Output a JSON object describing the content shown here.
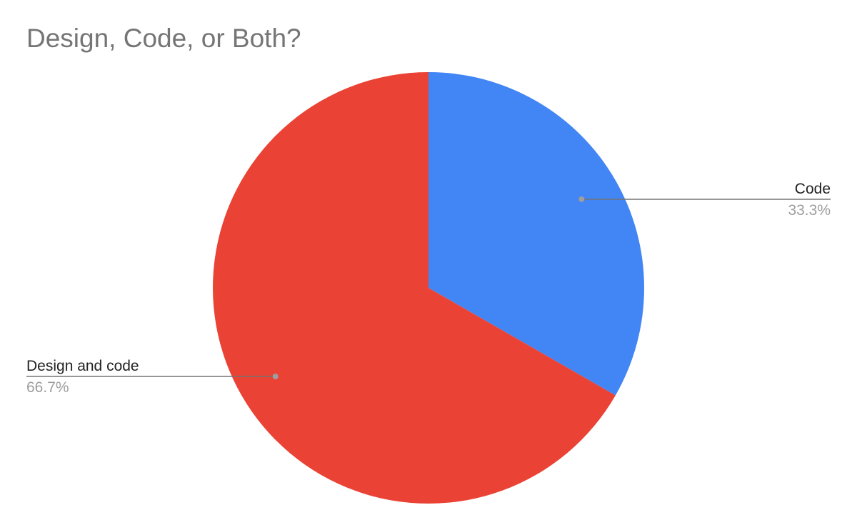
{
  "chart_data": {
    "type": "pie",
    "title": "Design, Code, or Both?",
    "slices": [
      {
        "label": "Code",
        "value": 33.3,
        "percent_label": "33.3%",
        "color": "#4285F4",
        "label_side": "right"
      },
      {
        "label": "Design and code",
        "value": 66.7,
        "percent_label": "66.7%",
        "color": "#EA4335",
        "label_side": "left"
      }
    ],
    "start_angle": "12 o'clock",
    "direction": "clockwise",
    "legend": "none",
    "label_color": "#222222",
    "percent_color": "#9e9e9e",
    "leader_color": "#757575"
  }
}
